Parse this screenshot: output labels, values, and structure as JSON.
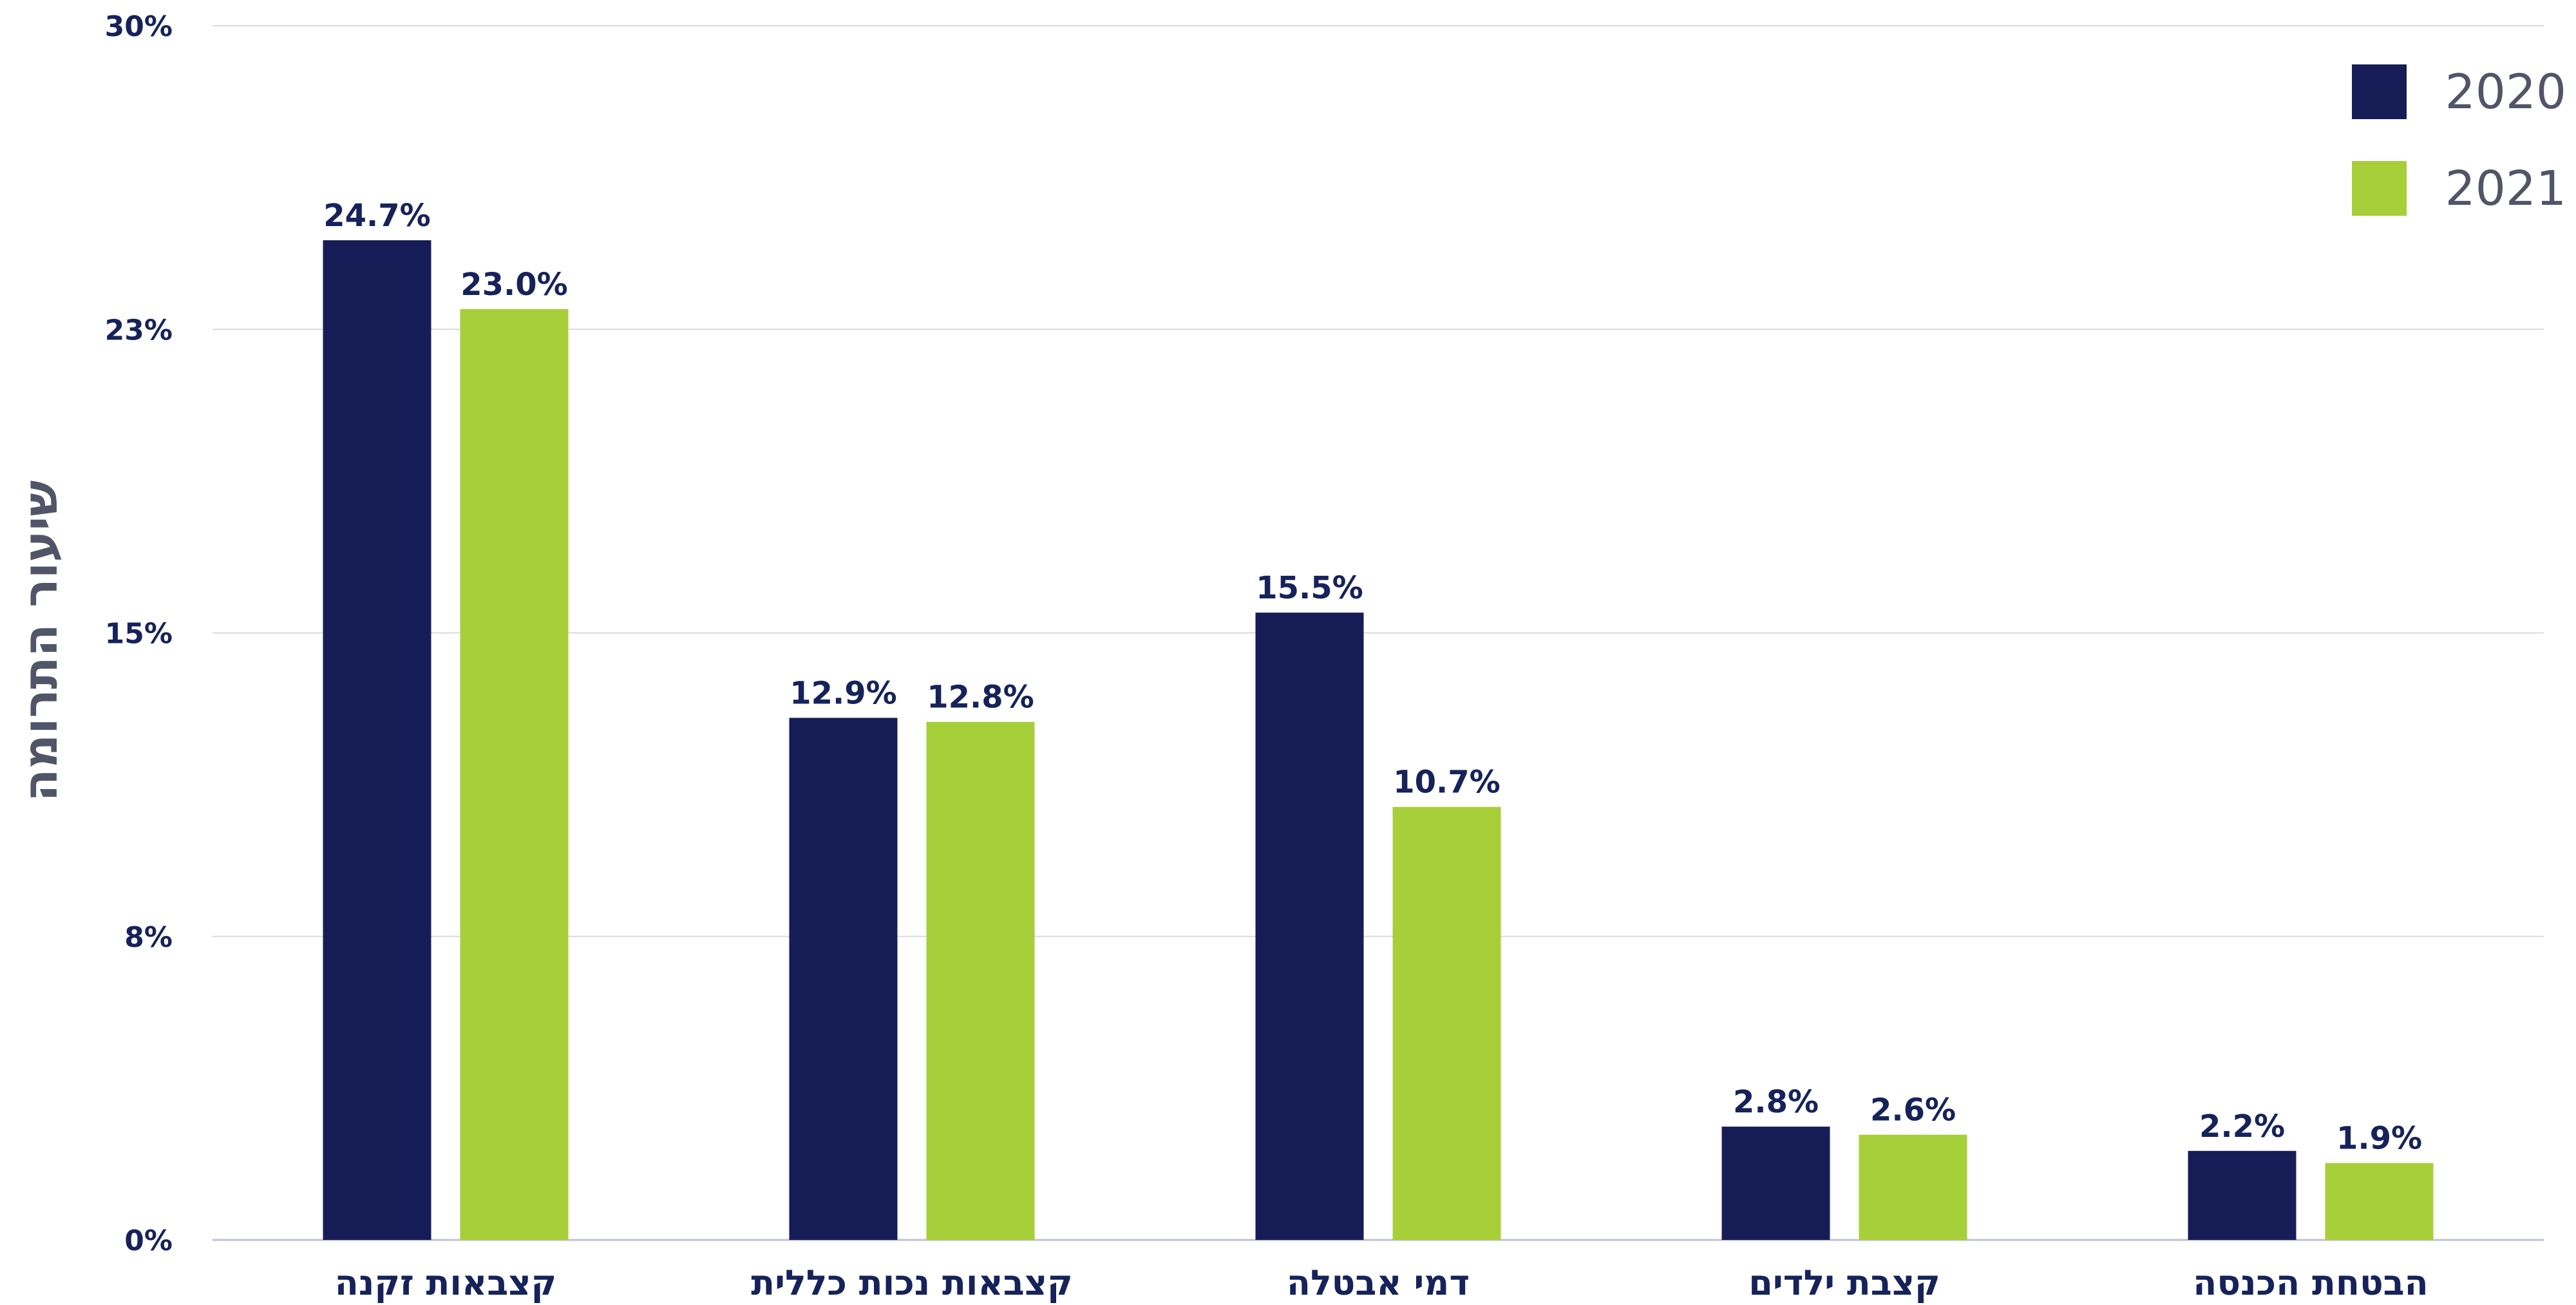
{
  "chart_data": {
    "type": "bar",
    "ylabel": "שיעור התרומה",
    "xlabel": "",
    "ylim": [
      0,
      30
    ],
    "yticks": [
      "0%",
      "8%",
      "15%",
      "23%",
      "30%"
    ],
    "ytick_values": [
      0,
      7.5,
      15,
      22.5,
      30
    ],
    "grid": true,
    "legend_position": "top-right",
    "categories": [
      "קצבאות זקנה",
      "קצבאות נכות כללית",
      "דמי אבטלה",
      "קצבת ילדים",
      "הבטחת הכנסה"
    ],
    "series": [
      {
        "name": "2020",
        "color": "#161d56",
        "values": [
          24.7,
          12.9,
          15.5,
          2.8,
          2.2
        ],
        "labels": [
          "24.7%",
          "12.9%",
          "15.5%",
          "2.8%",
          "2.2%"
        ]
      },
      {
        "name": "2021",
        "color": "#a7cf3a",
        "values": [
          23.0,
          12.8,
          10.7,
          2.6,
          1.9
        ],
        "labels": [
          "23.0%",
          "12.8%",
          "10.7%",
          "2.6%",
          "1.9%"
        ]
      }
    ]
  }
}
